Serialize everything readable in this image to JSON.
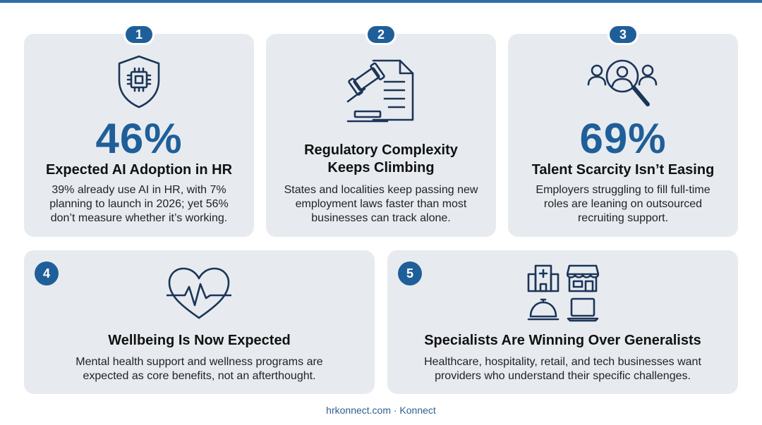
{
  "cards": [
    {
      "number": "1",
      "icon": "shield-chip-icon",
      "stat": "46%",
      "title": "Expected AI Adoption in HR",
      "desc_lines": [
        "39% already use AI in HR, with 7%",
        "planning to launch in 2026; yet 56%",
        "don’t measure whether it’s working."
      ]
    },
    {
      "number": "2",
      "icon": "gavel-document-icon",
      "title_lines": [
        "Regulatory Complexity",
        "Keeps Climbing"
      ],
      "desc_lines": [
        "States and localities keep passing new",
        "employment laws faster than most",
        "businesses can track alone."
      ]
    },
    {
      "number": "3",
      "icon": "people-search-icon",
      "stat": "69%",
      "title": "Talent Scarcity Isn’t Easing",
      "desc_lines": [
        "Employers struggling to fill full-time",
        "roles are leaning on outsourced",
        "recruiting support."
      ]
    },
    {
      "number": "4",
      "icon": "heart-pulse-icon",
      "title": "Wellbeing Is Now Expected",
      "desc_lines": [
        "Mental health support and wellness programs are",
        "expected as core benefits, not an afterthought."
      ]
    },
    {
      "number": "5",
      "icons": [
        "hospital-icon",
        "storefront-icon",
        "service-bell-icon",
        "laptop-icon"
      ],
      "title": "Specialists Are Winning Over Generalists",
      "desc_lines": [
        "Healthcare, hospitality, retail, and tech businesses want",
        "providers who understand their specific challenges."
      ]
    }
  ],
  "footer": "hrkonnect.com · Konnect",
  "colors": {
    "accent": "#1f5f99",
    "card_bg": "#e7ebf0",
    "icon_stroke": "#1c3557"
  }
}
